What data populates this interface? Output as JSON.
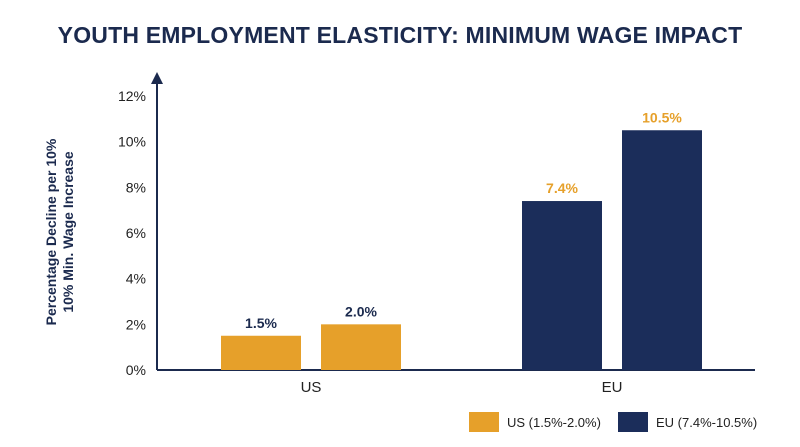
{
  "chart_data": {
    "type": "bar",
    "title": "YOUTH EMPLOYMENT ELASTICITY: MINIMUM WAGE IMPACT",
    "ylabel_lines": [
      "Percentage Decline per 10%",
      "10% Min. Wage Increase"
    ],
    "xlabel": "",
    "ylim": [
      0,
      12
    ],
    "yticks": [
      "0%",
      "2%",
      "4%",
      "6%",
      "8%",
      "10%",
      "12%"
    ],
    "yticks_values": [
      0,
      2,
      4,
      6,
      8,
      10,
      12
    ],
    "grid": false,
    "legend_position": "bottom-right",
    "categories": [
      "US",
      "EU"
    ],
    "series": [
      {
        "name": "US (1.5%-2.0%)",
        "color": "#e6a02a",
        "label_color": "#1b2a4e",
        "category": "US",
        "values": [
          1.5,
          2.0
        ],
        "labels": [
          "1.5%",
          "2.0%"
        ]
      },
      {
        "name": "EU (7.4%-10.5%)",
        "color": "#1b2d5a",
        "label_color": "#e6a02a",
        "category": "EU",
        "values": [
          7.4,
          10.5
        ],
        "labels": [
          "7.4%",
          "10.5%"
        ]
      }
    ]
  }
}
